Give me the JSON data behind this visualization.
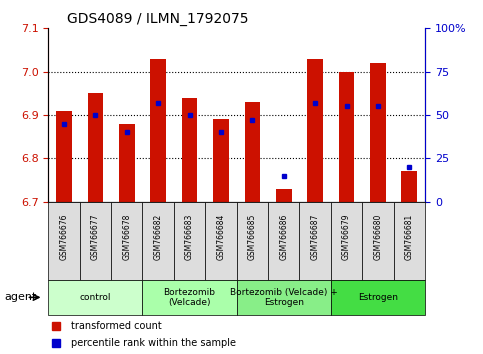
{
  "title": "GDS4089 / ILMN_1792075",
  "samples": [
    "GSM766676",
    "GSM766677",
    "GSM766678",
    "GSM766682",
    "GSM766683",
    "GSM766684",
    "GSM766685",
    "GSM766686",
    "GSM766687",
    "GSM766679",
    "GSM766680",
    "GSM766681"
  ],
  "red_values": [
    6.91,
    6.95,
    6.88,
    7.03,
    6.94,
    6.89,
    6.93,
    6.73,
    7.03,
    7.0,
    7.02,
    6.77
  ],
  "blue_percentiles": [
    45,
    50,
    40,
    57,
    50,
    40,
    47,
    15,
    57,
    55,
    55,
    20
  ],
  "ylim_left": [
    6.7,
    7.1
  ],
  "ylim_right": [
    0,
    100
  ],
  "yticks_left": [
    6.7,
    6.8,
    6.9,
    7.0,
    7.1
  ],
  "yticks_right": [
    0,
    25,
    50,
    75,
    100
  ],
  "groups": [
    {
      "label": "control",
      "start": 0,
      "end": 3,
      "color": "#ccffcc"
    },
    {
      "label": "Bortezomib\n(Velcade)",
      "start": 3,
      "end": 6,
      "color": "#aaffaa"
    },
    {
      "label": "Bortezomib (Velcade) +\nEstrogen",
      "start": 6,
      "end": 9,
      "color": "#88ee88"
    },
    {
      "label": "Estrogen",
      "start": 9,
      "end": 12,
      "color": "#44dd44"
    }
  ],
  "bar_color": "#cc1100",
  "dot_color": "#0000cc",
  "bar_width": 0.5,
  "agent_label": "agent",
  "legend_red": "transformed count",
  "legend_blue": "percentile rank within the sample",
  "ylabel_left_color": "#cc1100",
  "ylabel_right_color": "#0000cc",
  "grid_yticks": [
    6.8,
    6.9,
    7.0
  ],
  "sample_box_color": "#dddddd"
}
